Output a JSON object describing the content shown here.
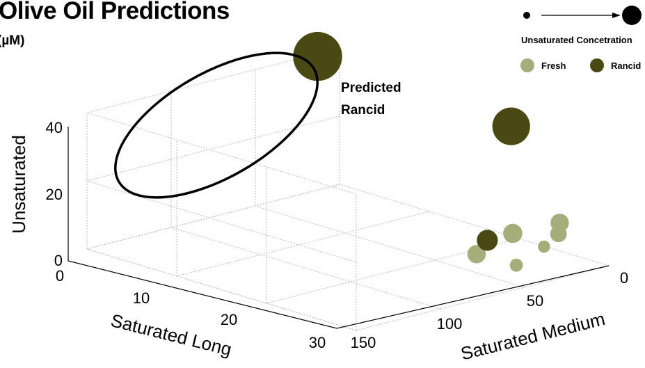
{
  "title": "Olive Oil Predictions",
  "unit": "(µM)",
  "chart_data": {
    "type": "scatter",
    "subtype": "3d-bubble",
    "xlabel": "Saturated Long",
    "ylabel": "Saturated Medium",
    "zlabel": "Unsaturated",
    "x_ticks": [
      "0",
      "10",
      "20",
      "30"
    ],
    "y_ticks": [
      "0",
      "50",
      "100",
      "150"
    ],
    "z_ticks": [
      "0",
      "20",
      "40"
    ],
    "xlim": [
      0,
      30
    ],
    "ylim": [
      0,
      150
    ],
    "zlim": [
      0,
      40
    ],
    "grid": true,
    "annotation": [
      "Predicted",
      "Rancid"
    ],
    "legend": {
      "size_label": "Unsaturated Concetration",
      "placement": "top-right",
      "classes": [
        {
          "name": "Fresh",
          "color": "#a5ae7b"
        },
        {
          "name": "Rancid",
          "color": "#4a4813"
        }
      ]
    },
    "points": [
      {
        "x": 2,
        "y": 45,
        "z": 35,
        "class": "Rancid",
        "size": 35
      },
      {
        "x": 9,
        "y": 120,
        "z": 48,
        "class": "Rancid",
        "size": 48
      },
      {
        "x": 3,
        "y": 22,
        "z": 4,
        "class": "Fresh",
        "size": 6
      },
      {
        "x": 2,
        "y": 18,
        "z": 11,
        "class": "Fresh",
        "size": 13
      },
      {
        "x": 3,
        "y": 14,
        "z": 9,
        "class": "Fresh",
        "size": 11
      },
      {
        "x": 8,
        "y": 16,
        "z": 12,
        "class": "Fresh",
        "size": 14
      },
      {
        "x": 8,
        "y": 14,
        "z": 3,
        "class": "Fresh",
        "size": 7
      },
      {
        "x": 14,
        "y": 8,
        "z": 11,
        "class": "Fresh",
        "size": 13
      },
      {
        "x": 14,
        "y": 2,
        "z": 16,
        "class": "Rancid",
        "size": 16
      }
    ]
  }
}
